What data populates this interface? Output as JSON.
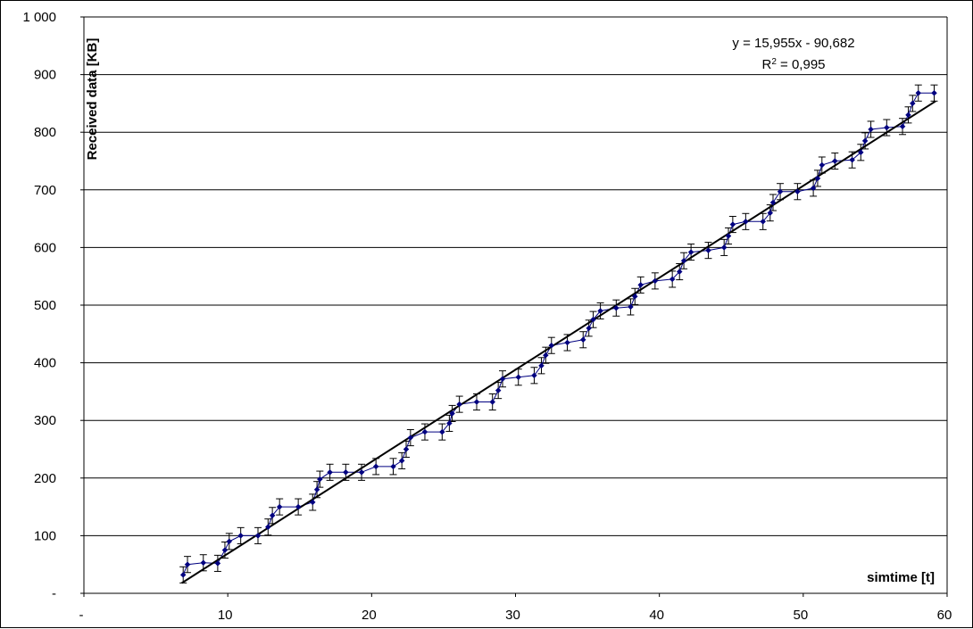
{
  "chart_data": {
    "type": "scatter",
    "title": "",
    "xlabel": "simtime [t]",
    "ylabel": "Received data [KB]",
    "xlim": [
      0,
      60
    ],
    "ylim": [
      0,
      1000
    ],
    "x_tick_labels": [
      "-",
      "10",
      "20",
      "30",
      "40",
      "50",
      "60"
    ],
    "y_tick_labels": [
      "-",
      "100",
      "200",
      "300",
      "400",
      "500",
      "600",
      "700",
      "800",
      "900",
      "1 000"
    ],
    "grid": "horizontal",
    "error_bar": 14,
    "trendline": {
      "type": "linear",
      "slope": 15.955,
      "intercept": -90.682,
      "x_range": [
        6.8,
        59.2
      ],
      "equation": "y = 15,955x - 90,682",
      "r2_prefix": "R",
      "r2_exp": "2",
      "r2_value": " = 0,995"
    },
    "colors": {
      "series": "#000080",
      "trendline": "#000000",
      "error_bars": "#000000",
      "grid": "#000000"
    },
    "series": [
      {
        "points": [
          [
            6.9,
            32
          ],
          [
            7.2,
            50
          ],
          [
            8.3,
            53
          ],
          [
            9.3,
            52
          ],
          [
            9.8,
            75
          ],
          [
            10.1,
            90
          ],
          [
            10.9,
            100
          ],
          [
            12.1,
            100
          ],
          [
            12.8,
            115
          ],
          [
            13.1,
            135
          ],
          [
            13.6,
            150
          ],
          [
            14.9,
            150
          ],
          [
            15.9,
            158
          ],
          [
            16.2,
            180
          ],
          [
            16.4,
            198
          ],
          [
            17.1,
            210
          ],
          [
            18.2,
            210
          ],
          [
            19.3,
            210
          ],
          [
            20.3,
            220
          ],
          [
            21.5,
            220
          ],
          [
            22.1,
            230
          ],
          [
            22.4,
            250
          ],
          [
            22.7,
            270
          ],
          [
            23.7,
            280
          ],
          [
            24.9,
            280
          ],
          [
            25.4,
            295
          ],
          [
            25.6,
            312
          ],
          [
            26.1,
            328
          ],
          [
            27.3,
            332
          ],
          [
            28.4,
            332
          ],
          [
            28.8,
            352
          ],
          [
            29.1,
            372
          ],
          [
            30.2,
            375
          ],
          [
            31.3,
            378
          ],
          [
            31.8,
            395
          ],
          [
            32.1,
            413
          ],
          [
            32.5,
            430
          ],
          [
            33.6,
            435
          ],
          [
            34.7,
            440
          ],
          [
            35.1,
            460
          ],
          [
            35.4,
            475
          ],
          [
            35.9,
            490
          ],
          [
            37.0,
            495
          ],
          [
            38.0,
            497
          ],
          [
            38.3,
            515
          ],
          [
            38.7,
            535
          ],
          [
            39.7,
            542
          ],
          [
            40.9,
            545
          ],
          [
            41.4,
            558
          ],
          [
            41.7,
            577
          ],
          [
            42.2,
            592
          ],
          [
            43.4,
            595
          ],
          [
            44.5,
            600
          ],
          [
            44.8,
            620
          ],
          [
            45.1,
            640
          ],
          [
            46.0,
            645
          ],
          [
            47.2,
            645
          ],
          [
            47.7,
            660
          ],
          [
            47.9,
            678
          ],
          [
            48.4,
            697
          ],
          [
            49.6,
            697
          ],
          [
            50.7,
            703
          ],
          [
            51.0,
            720
          ],
          [
            51.3,
            743
          ],
          [
            52.2,
            750
          ],
          [
            53.4,
            752
          ],
          [
            54.0,
            765
          ],
          [
            54.3,
            785
          ],
          [
            54.7,
            805
          ],
          [
            55.8,
            808
          ],
          [
            56.9,
            810
          ],
          [
            57.3,
            830
          ],
          [
            57.6,
            850
          ],
          [
            58.0,
            868
          ],
          [
            59.1,
            868
          ]
        ]
      }
    ]
  }
}
